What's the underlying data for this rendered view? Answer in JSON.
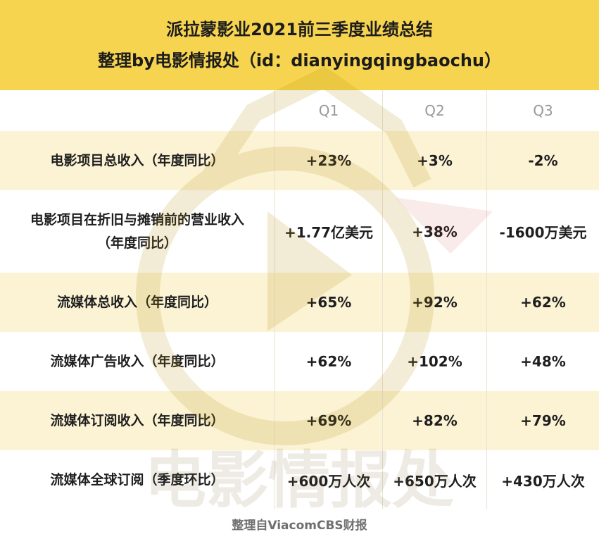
{
  "header": {
    "title": "派拉蒙影业2021前三季度业绩总结",
    "subtitle": "整理by电影情报处（id：dianyingqingbaochu）"
  },
  "table": {
    "columns": [
      "Q1",
      "Q2",
      "Q3"
    ],
    "rows": [
      {
        "label": "电影项目总收入（年度同比）",
        "values": [
          "+23%",
          "+3%",
          "-2%"
        ]
      },
      {
        "label_line1": "电影项目在折旧与摊销前的营业收入",
        "label_line2": "（年度同比）",
        "values": [
          "+1.77亿美元",
          "+38%",
          "-1600万美元"
        ]
      },
      {
        "label": "流媒体总收入（年度同比）",
        "values": [
          "+65%",
          "+92%",
          "+62%"
        ]
      },
      {
        "label": "流媒体广告收入（年度同比）",
        "values": [
          "+62%",
          "+102%",
          "+48%"
        ]
      },
      {
        "label": "流媒体订阅收入（年度同比）",
        "values": [
          "+69%",
          "+82%",
          "+79%"
        ]
      },
      {
        "label": "流媒体全球订阅（季度环比）",
        "values": [
          "+600万人次",
          "+650万人次",
          "+430万人次"
        ]
      }
    ]
  },
  "watermark": {
    "text": "电影情报处"
  },
  "footer": {
    "source": "整理自ViacomCBS财报"
  },
  "colors": {
    "header_bg": "#f6d44f",
    "row_tint": "#faf0c8",
    "watermark": "#d8c27a"
  }
}
